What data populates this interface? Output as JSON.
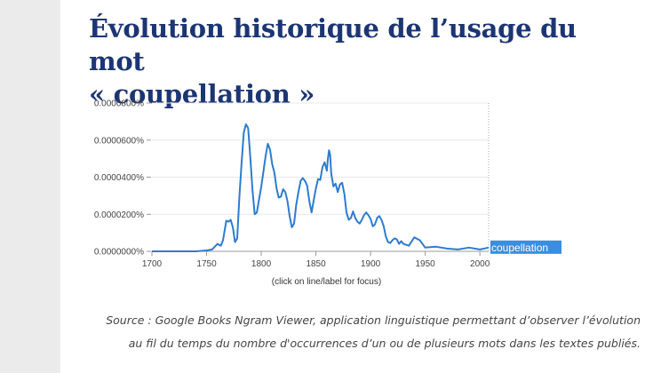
{
  "article": {
    "title_line1": "Évolution historique de l’usage du mot",
    "title_line2": "« coupellation »"
  },
  "caption": {
    "line1": "Source : Google Books Ngram Viewer, application linguistique permettant d’observer l’évolution",
    "line2": "au fil du temps du nombre d'occurrences d’un ou de plusieurs mots dans les textes publiés."
  },
  "colors": {
    "line": "#2e7bcf",
    "legend_bg": "#3b8de0",
    "grid": "#e8e8e8",
    "axis": "#999999"
  },
  "chart_data": {
    "type": "line",
    "title": "",
    "xlabel": "",
    "ylabel": "",
    "note": "(click on line/label for focus)",
    "xlim": [
      1700,
      2008
    ],
    "ylim": [
      0,
      8e-07
    ],
    "x_ticks": [
      1700,
      1750,
      1800,
      1850,
      1900,
      1950,
      2000
    ],
    "y_ticks": [
      {
        "value": 0.0,
        "label": "0.0000000%"
      },
      {
        "value": 2e-07,
        "label": "0.0000200%"
      },
      {
        "value": 4e-07,
        "label": "0.0000400%"
      },
      {
        "value": 6e-07,
        "label": "0.0000600%"
      },
      {
        "value": 8e-07,
        "label": "0.0000800%"
      }
    ],
    "series": [
      {
        "name": "coupellation",
        "x": [
          1700,
          1740,
          1750,
          1755,
          1760,
          1763,
          1765,
          1768,
          1770,
          1772,
          1774,
          1776,
          1778,
          1780,
          1782,
          1784,
          1786,
          1788,
          1790,
          1792,
          1794,
          1796,
          1798,
          1800,
          1802,
          1804,
          1806,
          1808,
          1810,
          1812,
          1814,
          1816,
          1818,
          1820,
          1822,
          1824,
          1826,
          1828,
          1830,
          1832,
          1834,
          1836,
          1838,
          1840,
          1842,
          1844,
          1846,
          1848,
          1850,
          1852,
          1854,
          1856,
          1858,
          1860,
          1861,
          1862,
          1863,
          1864,
          1866,
          1868,
          1870,
          1872,
          1874,
          1876,
          1878,
          1880,
          1882,
          1884,
          1886,
          1888,
          1890,
          1892,
          1894,
          1896,
          1898,
          1900,
          1902,
          1904,
          1906,
          1908,
          1910,
          1912,
          1914,
          1916,
          1918,
          1920,
          1922,
          1924,
          1926,
          1928,
          1930,
          1935,
          1940,
          1945,
          1950,
          1960,
          1970,
          1980,
          1990,
          2000,
          2008
        ],
        "values": [
          0,
          0,
          5e-09,
          1e-08,
          4e-08,
          3e-08,
          6e-08,
          1.65e-07,
          1.6e-07,
          1.7e-07,
          1.3e-07,
          5e-08,
          7e-08,
          2.9e-07,
          4.75e-07,
          6.4e-07,
          6.85e-07,
          6.65e-07,
          5.1e-07,
          3.3e-07,
          2e-07,
          2.1e-07,
          2.8e-07,
          3.5e-07,
          4.3e-07,
          5.15e-07,
          5.8e-07,
          5.5e-07,
          4.7e-07,
          4.25e-07,
          3.4e-07,
          2.9e-07,
          2.95e-07,
          3.35e-07,
          3.2e-07,
          2.7e-07,
          1.9e-07,
          1.3e-07,
          1.5e-07,
          2.5e-07,
          3.2e-07,
          3.8e-07,
          3.95e-07,
          3.8e-07,
          3.55e-07,
          2.7e-07,
          2.1e-07,
          2.75e-07,
          3.4e-07,
          3.9e-07,
          3.85e-07,
          4.55e-07,
          4.8e-07,
          4.35e-07,
          5e-07,
          5.45e-07,
          5.2e-07,
          4.2e-07,
          3.5e-07,
          3.65e-07,
          3.2e-07,
          3.6e-07,
          3.7e-07,
          3.1e-07,
          2.1e-07,
          1.7e-07,
          1.8e-07,
          2.15e-07,
          1.8e-07,
          1.6e-07,
          1.5e-07,
          1.7e-07,
          1.95e-07,
          2.1e-07,
          1.95e-07,
          1.75e-07,
          1.35e-07,
          1.45e-07,
          1.8e-07,
          1.9e-07,
          1.7e-07,
          1.35e-07,
          8e-08,
          5e-08,
          4.5e-08,
          6e-08,
          7e-08,
          6.5e-08,
          4e-08,
          5.5e-08,
          4e-08,
          3e-08,
          7.5e-08,
          6e-08,
          2e-08,
          2.5e-08,
          1.5e-08,
          1e-08,
          2e-08,
          1e-08,
          2e-08
        ]
      }
    ],
    "legend": [
      "coupellation"
    ]
  }
}
